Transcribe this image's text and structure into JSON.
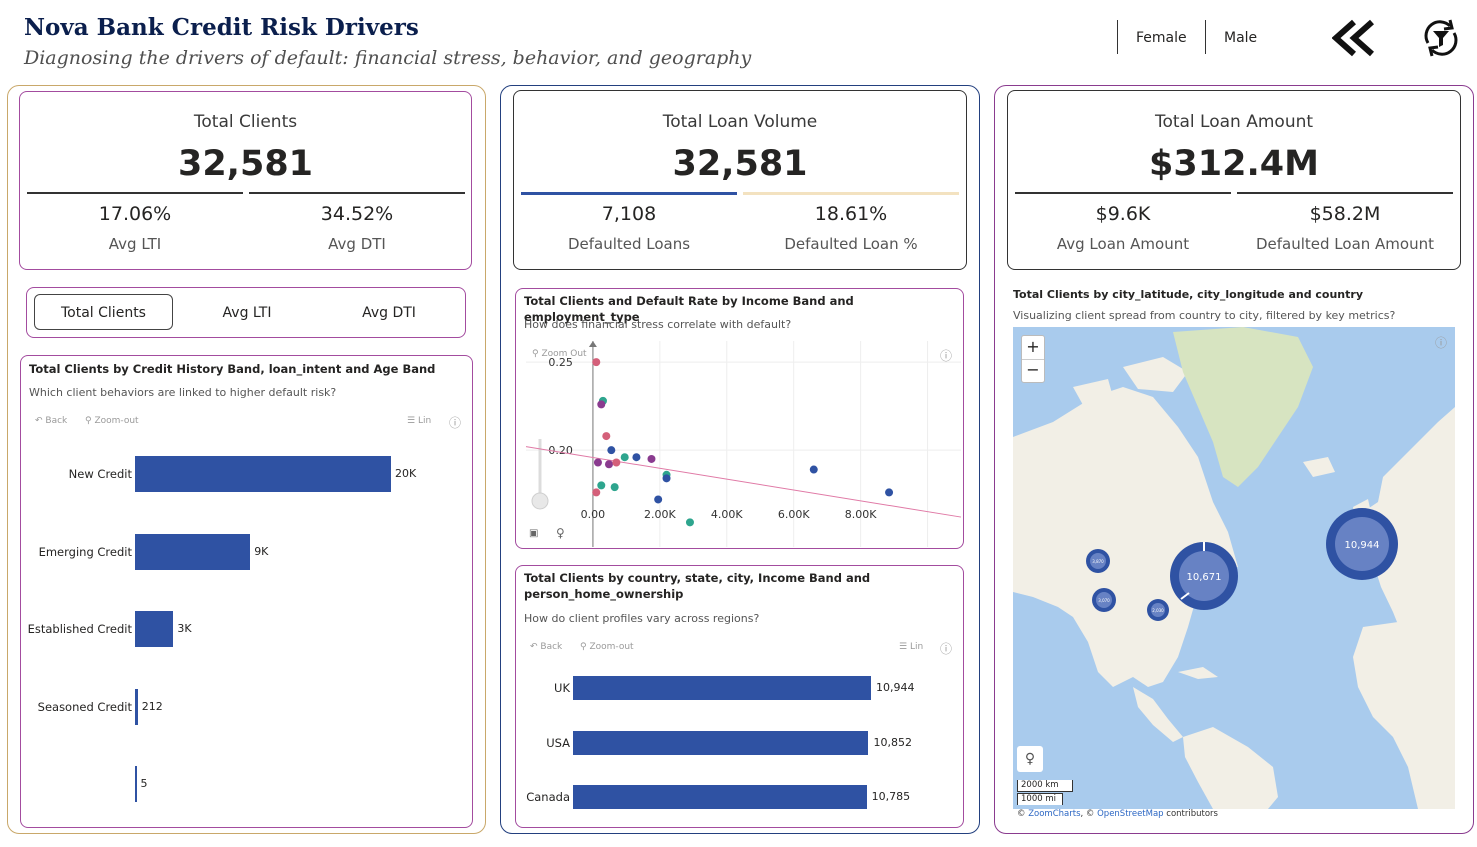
{
  "header": {
    "title": "Nova Bank Credit Risk Drivers",
    "subtitle": "Diagnosing the drivers of default: financial stress, behavior, and geography",
    "slicers": [
      "Female",
      "Male"
    ],
    "icons": [
      "double-chevron-left-icon",
      "filter-reset-icon"
    ]
  },
  "kpi_clients": {
    "title": "Total Clients",
    "value": "32,581",
    "left_value": "17.06%",
    "left_label": "Avg LTI",
    "right_value": "34.52%",
    "right_label": "Avg DTI"
  },
  "kpi_loans": {
    "title": "Total Loan Volume",
    "value": "32,581",
    "left_value": "7,108",
    "left_label": "Defaulted Loans",
    "right_value": "18.61%",
    "right_label": "Defaulted Loan %"
  },
  "kpi_amount": {
    "title": "Total Loan Amount",
    "value": "$312.4M",
    "left_value": "$9.6K",
    "left_label": "Avg Loan Amount",
    "right_value": "$58.2M",
    "right_label": "Defaulted Loan Amount"
  },
  "measure_buttons": [
    "Total Clients",
    "Avg LTI",
    "Avg DTI"
  ],
  "toolbar": {
    "back": "Back",
    "zoom_out": "Zoom-out",
    "lin": "Lin",
    "zoom_out_scatter": "Zoom Out"
  },
  "credit_chart": {
    "title": "Total Clients by Credit History Band, loan_intent and Age Band",
    "subtitle": "Which client behaviors are linked to higher default risk?",
    "chart_data": {
      "type": "bar",
      "categories": [
        "New Credit",
        "Emerging Credit",
        "Established Credit",
        "Seasoned Credit",
        ""
      ],
      "values": [
        20000,
        9000,
        3000,
        212,
        5
      ],
      "labels": [
        "20K",
        "9K",
        "3K",
        "212",
        "5"
      ]
    }
  },
  "scatter_chart": {
    "title": "Total Clients and Default Rate by Income Band and employment_type",
    "subtitle": "How does financial stress correlate with default?",
    "chart_data": {
      "type": "scatter",
      "x_ticks": [
        "0.00",
        "2.00K",
        "4.00K",
        "6.00K",
        "8.00K"
      ],
      "y_ticks": [
        "0.25",
        "0.20"
      ],
      "points": [
        {
          "x": 100,
          "y": 0.25,
          "color": "#d4607a"
        },
        {
          "x": 300,
          "y": 0.228,
          "color": "#2ea58e"
        },
        {
          "x": 250,
          "y": 0.226,
          "color": "#8a3b8f"
        },
        {
          "x": 400,
          "y": 0.208,
          "color": "#d4607a"
        },
        {
          "x": 550,
          "y": 0.2,
          "color": "#2f52a3"
        },
        {
          "x": 150,
          "y": 0.193,
          "color": "#8a3b8f"
        },
        {
          "x": 480,
          "y": 0.192,
          "color": "#8a3b8f"
        },
        {
          "x": 700,
          "y": 0.193,
          "color": "#d4607a"
        },
        {
          "x": 1300,
          "y": 0.196,
          "color": "#2f52a3"
        },
        {
          "x": 1750,
          "y": 0.195,
          "color": "#8a3b8f"
        },
        {
          "x": 950,
          "y": 0.196,
          "color": "#2ea58e"
        },
        {
          "x": 2200,
          "y": 0.186,
          "color": "#2ea58e"
        },
        {
          "x": 2200,
          "y": 0.184,
          "color": "#2f52a3"
        },
        {
          "x": 6600,
          "y": 0.189,
          "color": "#2f52a3"
        },
        {
          "x": 8850,
          "y": 0.176,
          "color": "#2f52a3"
        },
        {
          "x": 250,
          "y": 0.18,
          "color": "#2ea58e"
        },
        {
          "x": 100,
          "y": 0.176,
          "color": "#d4607a"
        },
        {
          "x": 650,
          "y": 0.179,
          "color": "#2ea58e"
        },
        {
          "x": 1950,
          "y": 0.172,
          "color": "#2f52a3"
        },
        {
          "x": 2900,
          "y": 0.159,
          "color": "#2ea58e"
        }
      ],
      "trend": {
        "x": [
          -2000,
          11000
        ],
        "y": [
          0.202,
          0.162
        ]
      },
      "xlim": [
        -2000,
        11000
      ],
      "ylim": [
        0.145,
        0.262
      ]
    }
  },
  "country_chart": {
    "title_line1": "Total Clients by country, state, city, Income Band and",
    "title_line2": "person_home_ownership",
    "subtitle": "How do client profiles vary across regions?",
    "chart_data": {
      "type": "bar",
      "categories": [
        "UK",
        "USA",
        "Canada"
      ],
      "values": [
        10944,
        10852,
        10785
      ],
      "labels": [
        "10,944",
        "10,852",
        "10,785"
      ]
    }
  },
  "map": {
    "title": "Total Clients by city_latitude, city_longitude and country",
    "subtitle": "Visualizing client spread from country to city, filtered by key metrics?",
    "zoom_in": "+",
    "zoom_out": "−",
    "bubbles": [
      "10,944",
      "10,671",
      "3,870",
      "3,070",
      "2,030"
    ],
    "scale_km": "2000 km",
    "scale_mi": "1000 mi",
    "attr_zoomcharts": "ZoomCharts",
    "attr_osm": "OpenStreetMap",
    "attr_contrib": "contributors",
    "attr_c1": "©",
    "attr_c2": ", ©"
  }
}
